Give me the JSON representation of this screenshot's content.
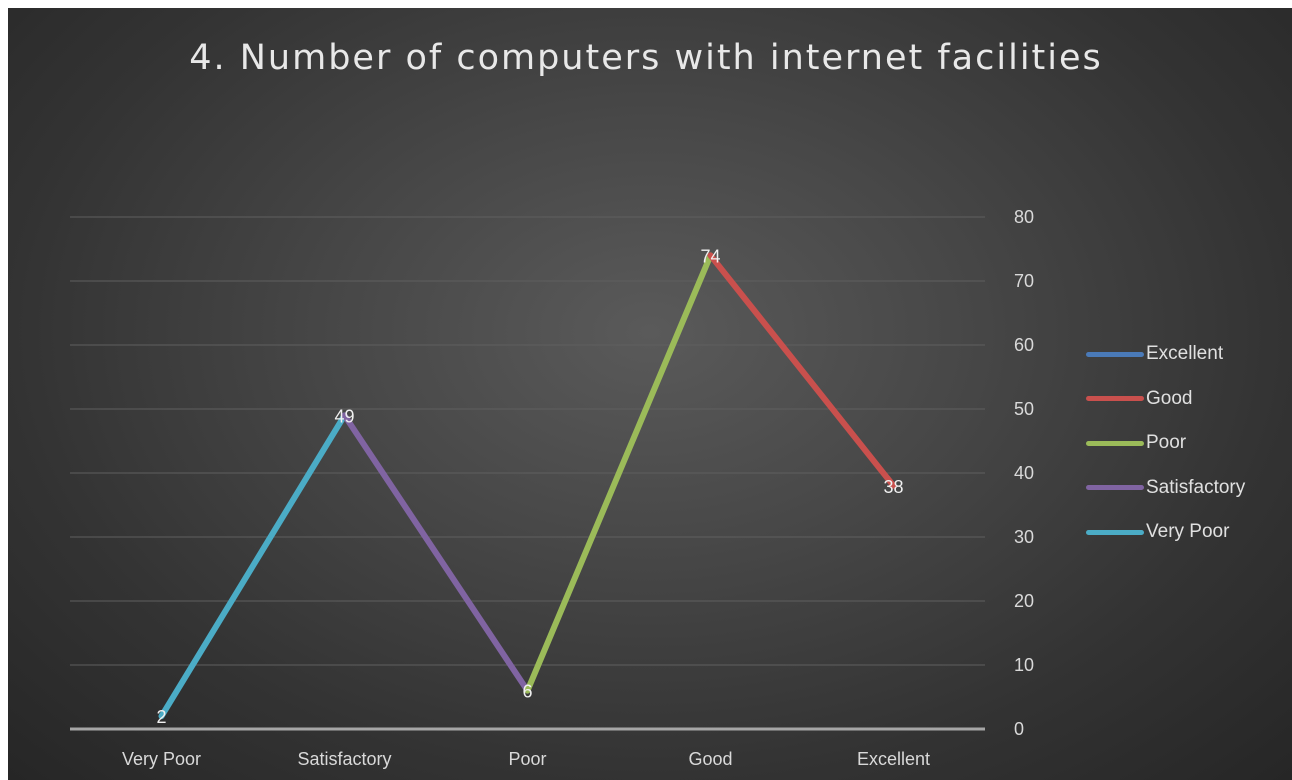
{
  "chart_data": {
    "type": "line",
    "title": "4. Number of computers with internet facilities",
    "xlabel": "",
    "ylabel": "",
    "categories": [
      "Very Poor",
      "Satisfactory",
      "Poor",
      "Good",
      "Excellent"
    ],
    "values": [
      2,
      49,
      6,
      74,
      38
    ],
    "ylim": [
      0,
      80
    ],
    "yticks": [
      0,
      10,
      20,
      30,
      40,
      50,
      60,
      70,
      80
    ],
    "y_axis_side": "right",
    "grid": true,
    "legend_position": "right",
    "segment_series": [
      "Very Poor",
      "Satisfactory",
      "Poor",
      "Good"
    ],
    "series": [
      {
        "name": "Excellent",
        "color": "#4a7ab8"
      },
      {
        "name": "Good",
        "color": "#c9504d"
      },
      {
        "name": "Poor",
        "color": "#9bbb59"
      },
      {
        "name": "Satisfactory",
        "color": "#8064a2"
      },
      {
        "name": "Very Poor",
        "color": "#4bacc6"
      }
    ]
  }
}
